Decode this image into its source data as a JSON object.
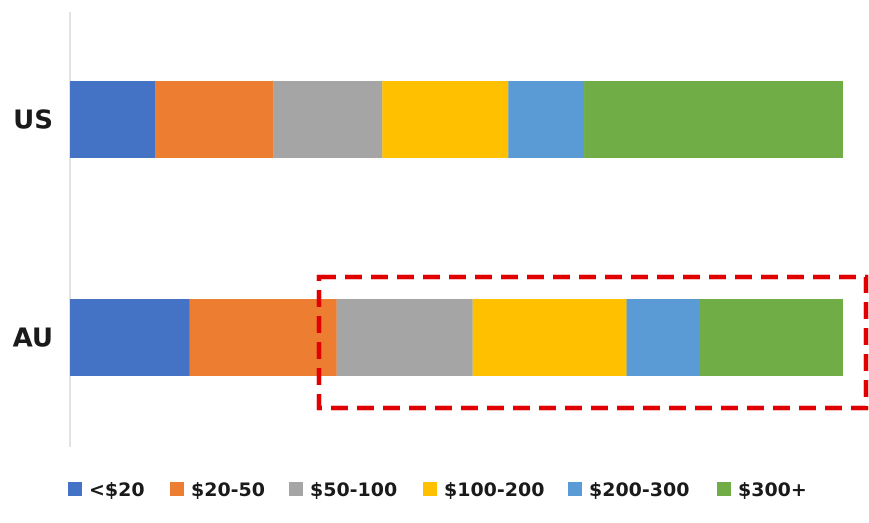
{
  "chart_data": {
    "type": "bar",
    "orientation": "horizontal",
    "stacked": true,
    "percent_stacked": true,
    "categories": [
      "US",
      "AU"
    ],
    "series": [
      {
        "name": "<$20",
        "color": "#4472C4",
        "values": [
          11,
          15.5
        ]
      },
      {
        "name": "$20-50",
        "color": "#ED7D31",
        "values": [
          15.3,
          19
        ]
      },
      {
        "name": "$50-100",
        "color": "#A5A5A5",
        "values": [
          14.1,
          17.6
        ]
      },
      {
        "name": "$100-200",
        "color": "#FFC000",
        "values": [
          16.3,
          19.9
        ]
      },
      {
        "name": "$200-300",
        "color": "#5B9BD5",
        "values": [
          9.8,
          9.5
        ]
      },
      {
        "name": "$300+",
        "color": "#70AD47",
        "values": [
          33.5,
          18.5
        ]
      }
    ],
    "title": "",
    "xlabel": "",
    "ylabel": "",
    "xlim": [
      0,
      100
    ],
    "grid": false,
    "legend_position": "bottom",
    "annotation": {
      "type": "dashed-rectangle",
      "color": "#E00000",
      "highlights": "AU segments $50-100 through $300+"
    }
  }
}
